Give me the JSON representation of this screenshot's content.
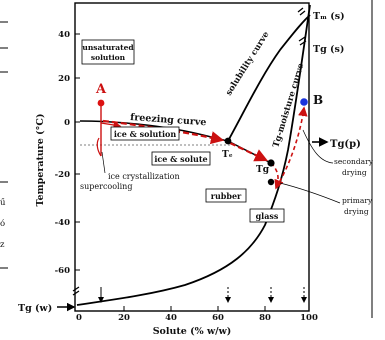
{
  "axes": {
    "y_label": "Temperature (°C)",
    "x_label": "Solute (% w/w)",
    "y_ticks": [
      "40",
      "20",
      "0",
      "-20",
      "-40",
      "-60"
    ],
    "x_ticks": [
      "0",
      "20",
      "40",
      "60",
      "80",
      "100"
    ]
  },
  "regions": {
    "unsaturated_line1": "unsaturated",
    "unsaturated_line2": "solution",
    "ice_solution": "ice & solution",
    "ice_solute": "ice & solute",
    "rubber": "rubber",
    "glass": "glass"
  },
  "curves": {
    "freezing": "freezing curve",
    "solubility": "solubility curve",
    "tg_moisture": "Tg-moisture curve"
  },
  "points": {
    "a": "A",
    "b": "B",
    "te": "Tₑ",
    "tg_prime": "Tg",
    "tm_s": "Tₘ (s)",
    "tg_s": "Tg (s)",
    "tg_p": "Tg(p)",
    "tg_w": "Tg (w)"
  },
  "annotations": {
    "ice_crystallization": "ice crystallization",
    "supercooling": "supercooling",
    "secondary_drying_1": "secondary",
    "secondary_drying_2": "drying",
    "primary_drying_1": "primary",
    "primary_drying_2": "drying"
  },
  "clipped_left_text": [
    "ű",
    "ó",
    "z"
  ],
  "colors": {
    "process": "#cc1111",
    "curve": "#000000",
    "point_b": "#1a33dd",
    "point_a": "#dd1111"
  }
}
